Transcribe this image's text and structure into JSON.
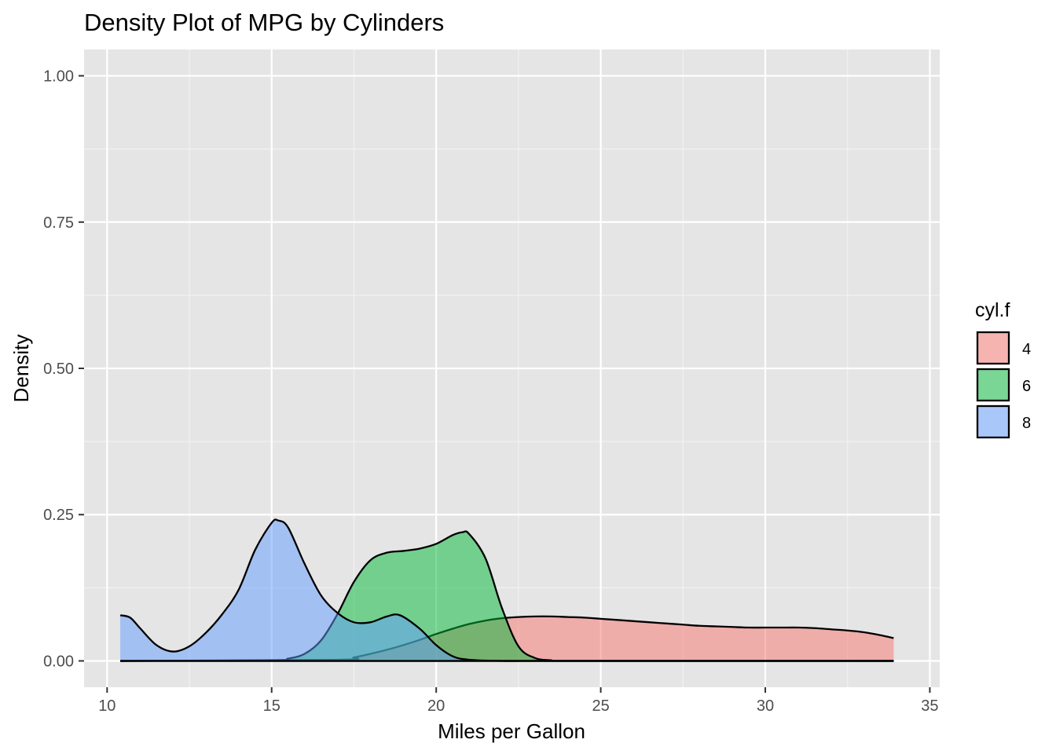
{
  "chart_data": {
    "type": "area",
    "subtype": "density",
    "title": "Density Plot of MPG by Cylinders",
    "xlabel": "Miles per Gallon",
    "ylabel": "Density",
    "xlim": [
      9.3,
      35.3
    ],
    "ylim": [
      -0.045,
      1.045
    ],
    "x_ticks": [
      10,
      15,
      20,
      25,
      30,
      35
    ],
    "x_tick_labels": [
      "10",
      "15",
      "20",
      "25",
      "30",
      "35"
    ],
    "y_ticks": [
      0,
      0.25,
      0.5,
      0.75,
      1.0
    ],
    "y_tick_labels": [
      "0.00",
      "0.25",
      "0.50",
      "0.75",
      "1.00"
    ],
    "grid": true,
    "legend": {
      "title": "cyl.f",
      "placement": "right",
      "items": [
        {
          "label": "4",
          "color": "#F8766D"
        },
        {
          "label": "6",
          "color": "#00BA38"
        },
        {
          "label": "8",
          "color": "#619CFF"
        }
      ]
    },
    "fill_opacity": 0.5,
    "panel_background": "#E5E5E5",
    "series": [
      {
        "name": "4",
        "color": "#F8766D",
        "x": [
          17.0,
          17.5,
          18.0,
          18.5,
          19.0,
          19.5,
          20.0,
          20.5,
          21.0,
          21.5,
          22.0,
          22.5,
          23.0,
          23.5,
          24.0,
          24.5,
          25.0,
          25.5,
          26.0,
          26.5,
          27.0,
          27.5,
          28.0,
          28.5,
          29.0,
          29.5,
          30.0,
          30.5,
          31.0,
          31.5,
          32.0,
          32.5,
          33.0,
          33.5,
          33.9
        ],
        "y": [
          0.002,
          0.006,
          0.012,
          0.019,
          0.027,
          0.036,
          0.046,
          0.055,
          0.063,
          0.069,
          0.073,
          0.075,
          0.076,
          0.076,
          0.075,
          0.074,
          0.072,
          0.07,
          0.068,
          0.066,
          0.064,
          0.062,
          0.06,
          0.059,
          0.058,
          0.057,
          0.057,
          0.057,
          0.057,
          0.056,
          0.054,
          0.052,
          0.049,
          0.044,
          0.039
        ]
      },
      {
        "name": "6",
        "color": "#00BA38",
        "x": [
          15.0,
          15.5,
          16.0,
          16.5,
          17.0,
          17.5,
          18.0,
          18.5,
          19.0,
          19.5,
          20.0,
          20.5,
          20.8,
          21.0,
          21.5,
          22.0,
          22.5,
          23.0,
          23.5,
          24.0
        ],
        "y": [
          0.001,
          0.004,
          0.012,
          0.035,
          0.08,
          0.135,
          0.172,
          0.185,
          0.188,
          0.192,
          0.2,
          0.215,
          0.22,
          0.217,
          0.175,
          0.09,
          0.025,
          0.005,
          0.001,
          0.0
        ]
      },
      {
        "name": "8",
        "color": "#619CFF",
        "x": [
          10.4,
          10.7,
          11.0,
          11.5,
          12.0,
          12.5,
          13.0,
          13.5,
          14.0,
          14.5,
          15.0,
          15.2,
          15.5,
          16.0,
          16.5,
          17.0,
          17.5,
          18.0,
          18.5,
          18.9,
          19.5,
          20.0,
          20.5,
          21.0,
          22.0,
          23.0,
          24.0,
          26.0,
          28.0,
          30.0,
          32.0,
          33.9
        ],
        "y": [
          0.078,
          0.074,
          0.056,
          0.027,
          0.016,
          0.025,
          0.048,
          0.08,
          0.122,
          0.19,
          0.236,
          0.24,
          0.228,
          0.166,
          0.112,
          0.082,
          0.066,
          0.066,
          0.076,
          0.078,
          0.055,
          0.027,
          0.008,
          0.002,
          0.0,
          0.0,
          0.0,
          0.0,
          0.0,
          0.0,
          0.0,
          0.0
        ]
      }
    ]
  }
}
